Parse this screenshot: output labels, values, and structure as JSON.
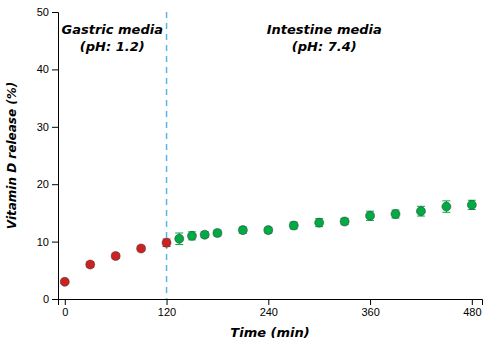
{
  "chart_data": {
    "type": "scatter",
    "xlabel": "Time (min)",
    "ylabel": "Vitamin D release (%)",
    "xlim": [
      -8,
      492
    ],
    "ylim": [
      0,
      50
    ],
    "xticks": [
      0,
      120,
      240,
      360,
      480
    ],
    "yticks": [
      0,
      10,
      20,
      30,
      40,
      50
    ],
    "grid": false,
    "series": [
      {
        "color": "#cc2222",
        "marker": "circle",
        "x": [
          0,
          30,
          60,
          90,
          120
        ],
        "values": [
          3.0,
          6.0,
          7.5,
          8.8,
          9.8
        ],
        "errors": [
          0.25,
          0.45,
          0.45,
          0.4,
          0.65
        ]
      },
      {
        "color": "#00aa44",
        "marker": "circle",
        "x": [
          135,
          150,
          165,
          180,
          210,
          240,
          270,
          300,
          330,
          360,
          390,
          420,
          450,
          480
        ],
        "values": [
          10.5,
          11.0,
          11.2,
          11.5,
          12.0,
          12.0,
          12.8,
          13.3,
          13.5,
          14.5,
          14.8,
          15.3,
          16.1,
          16.4
        ],
        "errors": [
          1.0,
          0.7,
          0.5,
          0.5,
          0.55,
          0.5,
          0.6,
          0.7,
          0.55,
          0.8,
          0.7,
          0.85,
          1.0,
          0.8
        ]
      }
    ],
    "reference_lines": [
      {
        "x": 120,
        "color": "#5ab4e8",
        "line_style": "dashed"
      }
    ],
    "annotations": [
      {
        "lines": [
          "Gastric media",
          "(pH: 1.2)"
        ]
      },
      {
        "lines": [
          "Intestine media",
          "(pH: 7.4)"
        ]
      }
    ]
  }
}
